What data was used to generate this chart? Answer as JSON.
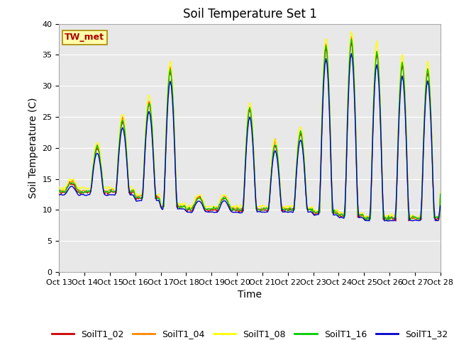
{
  "title": "Soil Temperature Set 1",
  "ylabel": "Soil Temperature (C)",
  "xlabel": "Time",
  "ylim": [
    0,
    40
  ],
  "xtick_labels": [
    "Oct 13",
    "Oct 14",
    "Oct 15",
    "Oct 16",
    "Oct 17",
    "Oct 18",
    "Oct 19",
    "Oct 20",
    "Oct 21",
    "Oct 22",
    "Oct 23",
    "Oct 24",
    "Oct 25",
    "Oct 26",
    "Oct 27",
    "Oct 28"
  ],
  "annotation_text": "TW_met",
  "annotation_color": "#aa0000",
  "annotation_bg": "#ffffaa",
  "annotation_border": "#aa8800",
  "series_names": [
    "SoilT1_02",
    "SoilT1_04",
    "SoilT1_08",
    "SoilT1_16",
    "SoilT1_32"
  ],
  "series_colors": [
    "#cc0000",
    "#ff8800",
    "#ffff00",
    "#00cc00",
    "#0000cc"
  ],
  "background_color": "#e8e8e8",
  "title_fontsize": 12,
  "axis_fontsize": 10,
  "tick_fontsize": 8,
  "legend_fontsize": 9,
  "linewidth": 1.0
}
